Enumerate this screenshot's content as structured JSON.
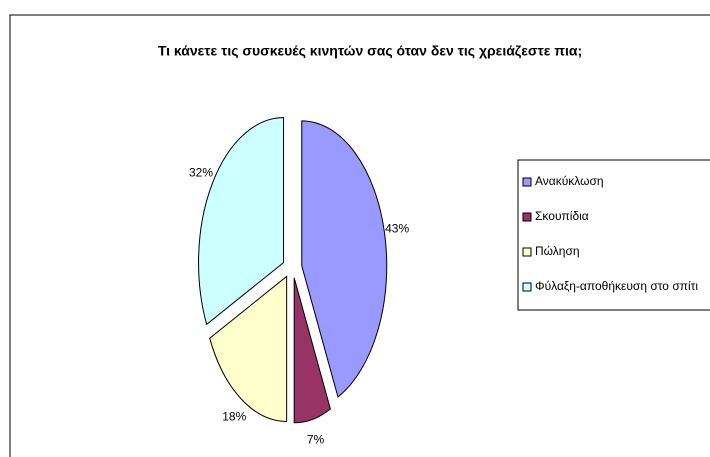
{
  "chart_data": {
    "type": "pie",
    "title": "Τι κάνετε τις συσκευές κινητών σας όταν δεν τις χρειάζεστε πια;",
    "categories": [
      "Ανακύκλωση",
      "Σκουπίδια",
      "Πώληση",
      "Φύλαξη-αποθήκευση στο σπίτι"
    ],
    "values": [
      43,
      7,
      18,
      32
    ],
    "value_labels": [
      "43%",
      "7%",
      "18%",
      "32%"
    ],
    "colors": [
      "#9999ff",
      "#993366",
      "#ffffcc",
      "#ccffff"
    ],
    "legend": "right"
  }
}
